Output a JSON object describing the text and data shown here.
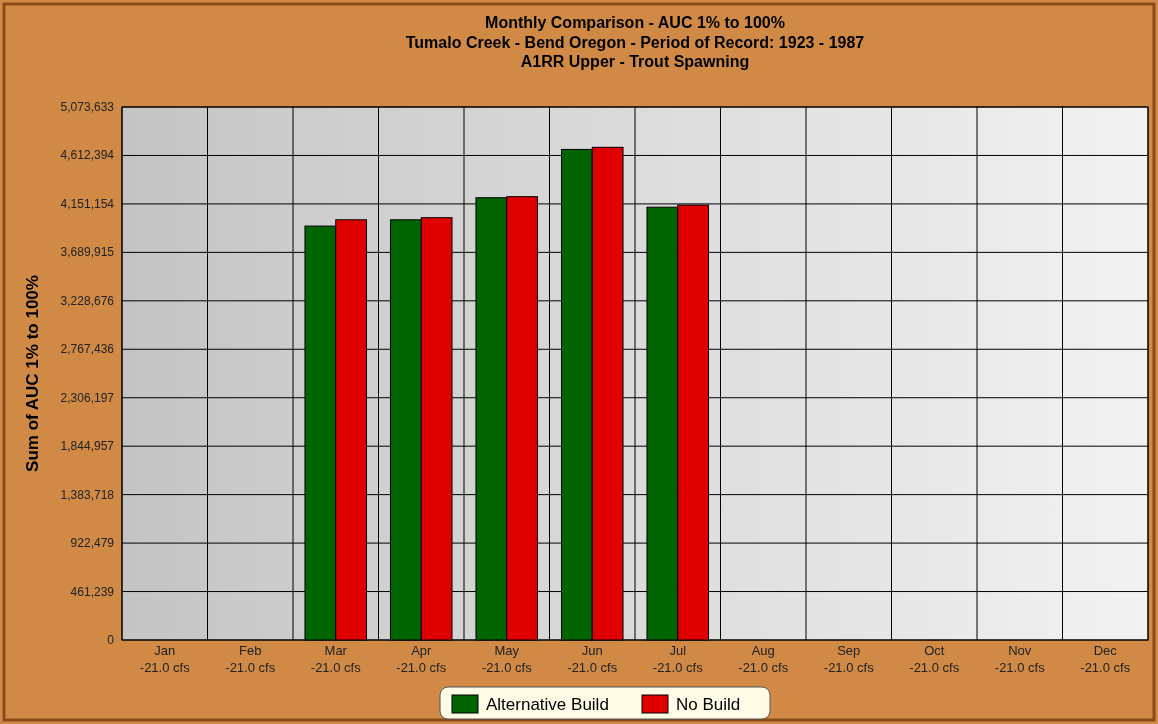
{
  "chart_data": {
    "type": "bar",
    "title": "Monthly Comparison - AUC 1% to 100%",
    "subtitle": "Tumalo Creek - Bend Oregon - Period of Record: 1923 - 1987\nA1RR Upper - Trout Spawning",
    "ylabel": "Sum of AUC 1% to 100%",
    "categories": [
      "Jan\n-21.0 cfs",
      "Feb\n-21.0 cfs",
      "Mar\n-21.0 cfs",
      "Apr\n-21.0 cfs",
      "May\n-21.0 cfs",
      "Jun\n-21.0 cfs",
      "Jul\n-21.0 cfs",
      "Aug\n-21.0 cfs",
      "Sep\n-21.0 cfs",
      "Oct\n-21.0 cfs",
      "Nov\n-21.0 cfs",
      "Dec\n-21.0 cfs"
    ],
    "series": [
      {
        "name": "Alternative Build",
        "color": "#006400",
        "values": [
          null,
          null,
          3940000,
          4000000,
          4210000,
          4670000,
          4120000,
          null,
          null,
          null,
          null,
          null
        ]
      },
      {
        "name": "No Build",
        "color": "#e00000",
        "values": [
          null,
          null,
          4000000,
          4020000,
          4220000,
          4690000,
          4140000,
          null,
          null,
          null,
          null,
          null
        ]
      }
    ],
    "ylim": [
      0,
      5073633
    ],
    "yticks": [
      0,
      {
        "value": 461239,
        "label": "461,239"
      },
      {
        "value": 922479,
        "label": "922,479"
      },
      {
        "value": 1383718,
        "label": "1,383,718"
      },
      {
        "value": 1844957,
        "label": "1,844,957"
      },
      {
        "value": 2306197,
        "label": "2,306,197"
      },
      {
        "value": 2767436,
        "label": "2,767,436"
      },
      {
        "value": 3228676,
        "label": "3,228,676"
      },
      {
        "value": 3689915,
        "label": "3,689,915"
      },
      {
        "value": 4151154,
        "label": "4,151,154"
      },
      {
        "value": 4612394,
        "label": "4,612,394"
      },
      {
        "value": 5073633,
        "label": "5,073,633"
      }
    ],
    "grid": true,
    "legend": "bottom"
  }
}
